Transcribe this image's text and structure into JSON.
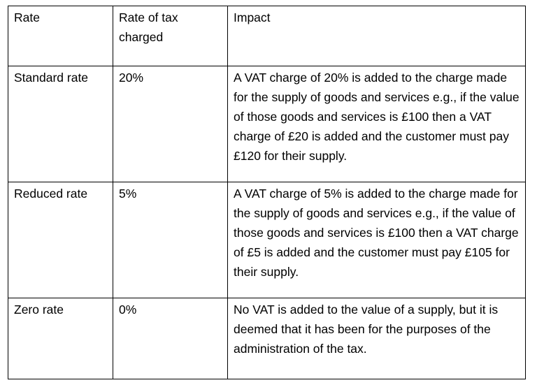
{
  "table": {
    "headers": [
      "Rate",
      "Rate of tax charged",
      "Impact"
    ],
    "rows": [
      {
        "rate": "Standard rate",
        "value": "20%",
        "impact": "A VAT charge of 20% is added to the charge made for the supply of goods and services e.g., if the value of those goods and services is £100 then a VAT charge of £20 is added and the customer must pay £120 for their supply."
      },
      {
        "rate": "Reduced rate",
        "value": "5%",
        "impact": "A VAT charge of 5% is added to the charge made for the supply of goods and services e.g., if the value of those goods and services is £100 then a VAT charge of £5 is added and the customer must pay £105 for their supply."
      },
      {
        "rate": "Zero rate",
        "value": "0%",
        "impact": "No VAT is added to the value of a supply, but it is deemed that it has been for the purposes of the administration of the tax."
      }
    ]
  }
}
